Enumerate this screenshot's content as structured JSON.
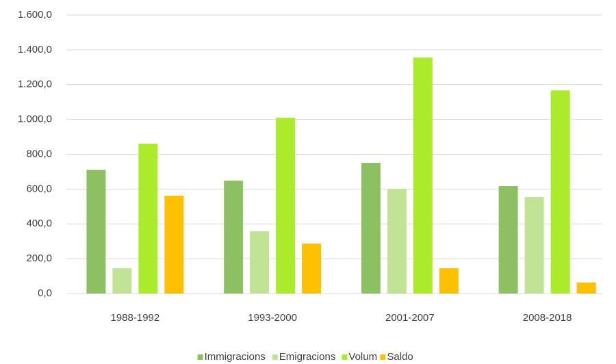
{
  "chart_data": {
    "type": "bar",
    "categories": [
      "1988-1992",
      "1993-2000",
      "2001-2007",
      "2008-2018"
    ],
    "series": [
      {
        "name": "Immigracions",
        "color": "#8cc063",
        "values": [
          711,
          649,
          751,
          617
        ]
      },
      {
        "name": "Emigracions",
        "color": "#c0e396",
        "values": [
          145,
          358,
          601,
          554
        ]
      },
      {
        "name": "Volum",
        "color": "#aaeb2c",
        "values": [
          861,
          1010,
          1356,
          1167
        ]
      },
      {
        "name": "Saldo",
        "color": "#ffc000",
        "values": [
          562,
          287,
          145,
          63
        ]
      }
    ],
    "ylim": [
      0,
      1600
    ],
    "yticks": [
      {
        "value": 0,
        "label": "0,0"
      },
      {
        "value": 200,
        "label": "200,0"
      },
      {
        "value": 400,
        "label": "400,0"
      },
      {
        "value": 600,
        "label": "600,0"
      },
      {
        "value": 800,
        "label": "800,0"
      },
      {
        "value": 1000,
        "label": "1.000,0"
      },
      {
        "value": 1200,
        "label": "1.200,0"
      },
      {
        "value": 1400,
        "label": "1.400,0"
      },
      {
        "value": 1600,
        "label": "1.600,0"
      }
    ],
    "grid": true,
    "legend": "bottom"
  }
}
